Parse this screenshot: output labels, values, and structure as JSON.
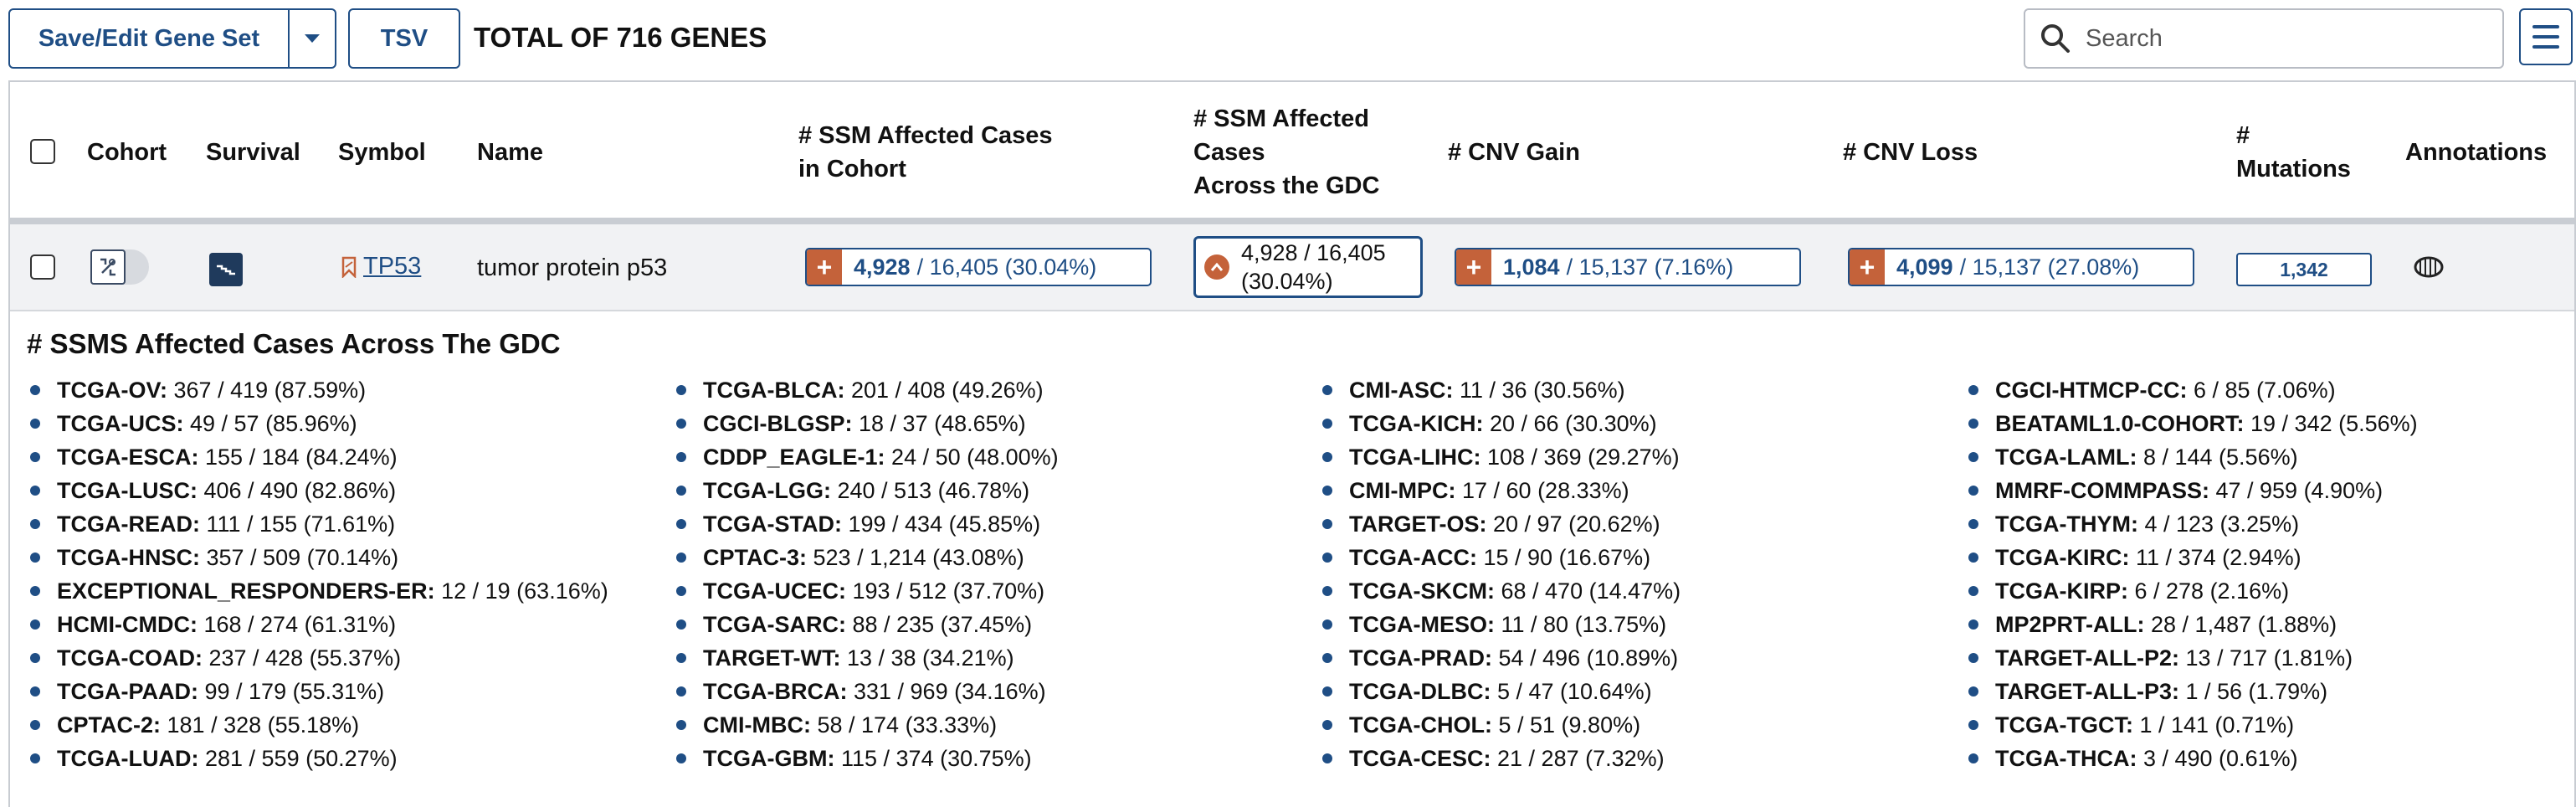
{
  "toolbar": {
    "save_edit_label": "Save/Edit Gene Set",
    "tsv_label": "TSV",
    "total_label": "TOTAL OF 716 GENES",
    "search_placeholder": "Search"
  },
  "table": {
    "headers": {
      "cohort": "Cohort",
      "survival": "Survival",
      "symbol": "Symbol",
      "name": "Name",
      "ssm_cohort_line1": "# SSM Affected Cases",
      "ssm_cohort_line2": "in Cohort",
      "ssm_gdc_line1": "# SSM Affected",
      "ssm_gdc_line2": "Cases",
      "ssm_gdc_line3": "Across the GDC",
      "cnv_gain": "# CNV Gain",
      "cnv_loss": "# CNV Loss",
      "mutations_line1": "#",
      "mutations_line2": "Mutations",
      "annotations": "Annotations"
    },
    "row": {
      "symbol": "TP53",
      "name": "tumor protein p53",
      "ssm_cohort": {
        "count": "4,928",
        "rest": "/ 16,405 (30.04%)"
      },
      "ssm_gdc": "4,928 / 16,405 (30.04%)",
      "cnv_gain": {
        "count": "1,084",
        "rest": "/ 15,137 (7.16%)"
      },
      "cnv_loss": {
        "count": "4,099",
        "rest": "/ 15,137 (27.08%)"
      },
      "mutations": "1,342"
    }
  },
  "breakdown": {
    "title": "# SSMS Affected Cases Across The GDC",
    "columns": [
      [
        {
          "project": "TCGA-OV:",
          "value": "367 / 419 (87.59%)"
        },
        {
          "project": "TCGA-UCS:",
          "value": "49 / 57 (85.96%)"
        },
        {
          "project": "TCGA-ESCA:",
          "value": "155 / 184 (84.24%)"
        },
        {
          "project": "TCGA-LUSC:",
          "value": "406 / 490 (82.86%)"
        },
        {
          "project": "TCGA-READ:",
          "value": "111 / 155 (71.61%)"
        },
        {
          "project": "TCGA-HNSC:",
          "value": "357 / 509 (70.14%)"
        },
        {
          "project": "EXCEPTIONAL_RESPONDERS-ER:",
          "value": "12 / 19 (63.16%)"
        },
        {
          "project": "HCMI-CMDC:",
          "value": "168 / 274 (61.31%)"
        },
        {
          "project": "TCGA-COAD:",
          "value": "237 / 428 (55.37%)"
        },
        {
          "project": "TCGA-PAAD:",
          "value": "99 / 179 (55.31%)"
        },
        {
          "project": "CPTAC-2:",
          "value": "181 / 328 (55.18%)"
        },
        {
          "project": "TCGA-LUAD:",
          "value": "281 / 559 (50.27%)"
        }
      ],
      [
        {
          "project": "TCGA-BLCA:",
          "value": "201 / 408 (49.26%)"
        },
        {
          "project": "CGCI-BLGSP:",
          "value": "18 / 37 (48.65%)"
        },
        {
          "project": "CDDP_EAGLE-1:",
          "value": "24 / 50 (48.00%)"
        },
        {
          "project": "TCGA-LGG:",
          "value": "240 / 513 (46.78%)"
        },
        {
          "project": "TCGA-STAD:",
          "value": "199 / 434 (45.85%)"
        },
        {
          "project": "CPTAC-3:",
          "value": "523 / 1,214 (43.08%)"
        },
        {
          "project": "TCGA-UCEC:",
          "value": "193 / 512 (37.70%)"
        },
        {
          "project": "TCGA-SARC:",
          "value": "88 / 235 (37.45%)"
        },
        {
          "project": "TARGET-WT:",
          "value": "13 / 38 (34.21%)"
        },
        {
          "project": "TCGA-BRCA:",
          "value": "331 / 969 (34.16%)"
        },
        {
          "project": "CMI-MBC:",
          "value": "58 / 174 (33.33%)"
        },
        {
          "project": "TCGA-GBM:",
          "value": "115 / 374 (30.75%)"
        }
      ],
      [
        {
          "project": "CMI-ASC:",
          "value": "11 / 36 (30.56%)"
        },
        {
          "project": "TCGA-KICH:",
          "value": "20 / 66 (30.30%)"
        },
        {
          "project": "TCGA-LIHC:",
          "value": "108 / 369 (29.27%)"
        },
        {
          "project": "CMI-MPC:",
          "value": "17 / 60 (28.33%)"
        },
        {
          "project": "TARGET-OS:",
          "value": "20 / 97 (20.62%)"
        },
        {
          "project": "TCGA-ACC:",
          "value": "15 / 90 (16.67%)"
        },
        {
          "project": "TCGA-SKCM:",
          "value": "68 / 470 (14.47%)"
        },
        {
          "project": "TCGA-MESO:",
          "value": "11 / 80 (13.75%)"
        },
        {
          "project": "TCGA-PRAD:",
          "value": "54 / 496 (10.89%)"
        },
        {
          "project": "TCGA-DLBC:",
          "value": "5 / 47 (10.64%)"
        },
        {
          "project": "TCGA-CHOL:",
          "value": "5 / 51 (9.80%)"
        },
        {
          "project": "TCGA-CESC:",
          "value": "21 / 287 (7.32%)"
        }
      ],
      [
        {
          "project": "CGCI-HTMCP-CC:",
          "value": "6 / 85 (7.06%)"
        },
        {
          "project": "BEATAML1.0-COHORT:",
          "value": "19 / 342 (5.56%)"
        },
        {
          "project": "TCGA-LAML:",
          "value": "8 / 144 (5.56%)"
        },
        {
          "project": "MMRF-COMMPASS:",
          "value": "47 / 959 (4.90%)"
        },
        {
          "project": "TCGA-THYM:",
          "value": "4 / 123 (3.25%)"
        },
        {
          "project": "TCGA-KIRC:",
          "value": "11 / 374 (2.94%)"
        },
        {
          "project": "TCGA-KIRP:",
          "value": "6 / 278 (2.16%)"
        },
        {
          "project": "MP2PRT-ALL:",
          "value": "28 / 1,487 (1.88%)"
        },
        {
          "project": "TARGET-ALL-P2:",
          "value": "13 / 717 (1.81%)"
        },
        {
          "project": "TARGET-ALL-P3:",
          "value": "1 / 56 (1.79%)"
        },
        {
          "project": "TCGA-TGCT:",
          "value": "1 / 141 (0.71%)"
        },
        {
          "project": "TCGA-THCA:",
          "value": "3 / 490 (0.61%)"
        }
      ]
    ]
  },
  "colors": {
    "primary": "#1f4e85",
    "accent": "#c4623a",
    "row_bg": "#f1f2f4"
  },
  "icons": [
    "chevron-down-icon",
    "search-icon",
    "hamburger-menu-icon",
    "cohort-toggle-icon",
    "survival-plot-icon",
    "bookmark-icon",
    "plus-icon",
    "chevron-up-icon",
    "annotation-icon"
  ]
}
